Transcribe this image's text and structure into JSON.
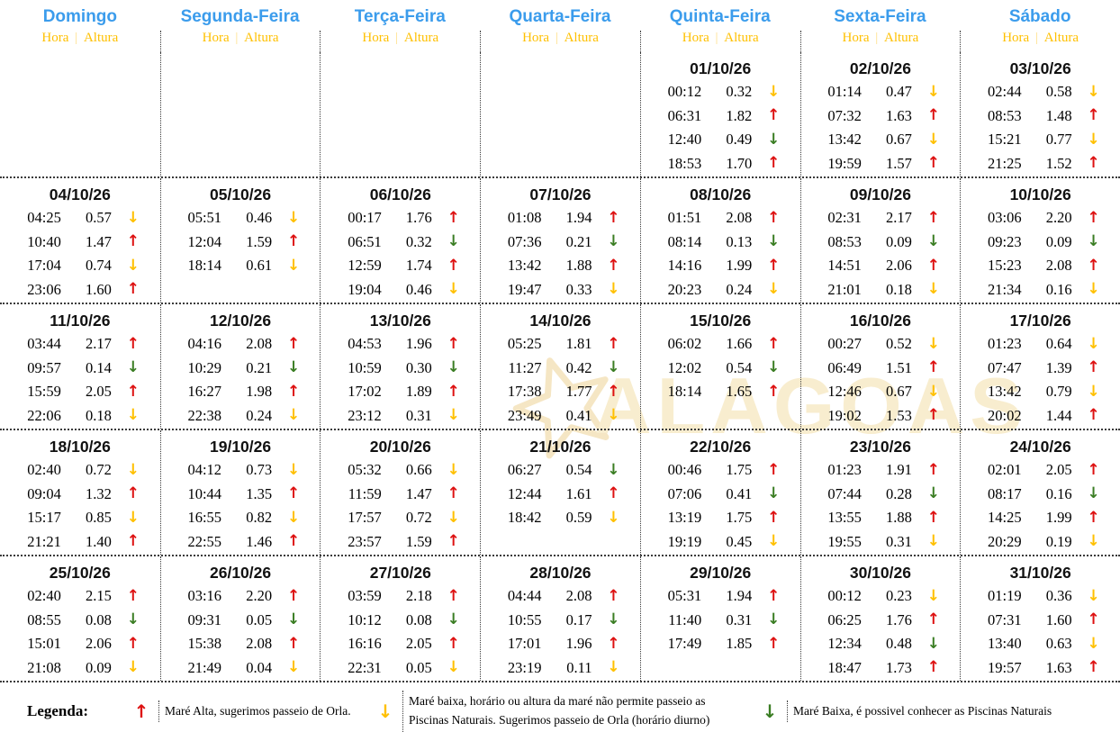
{
  "header": {
    "days": [
      "Domingo",
      "Segunda-Feira",
      "Terça-Feira",
      "Quarta-Feira",
      "Quinta-Feira",
      "Sexta-Feira",
      "Sábado"
    ],
    "hora_label": "Hora",
    "separator": "|",
    "altura_label": "Altura"
  },
  "tide_fields": [
    "time",
    "height",
    "direction",
    "color"
  ],
  "weeks": [
    {
      "days": [
        {
          "date": "",
          "tides": []
        },
        {
          "date": "",
          "tides": []
        },
        {
          "date": "",
          "tides": []
        },
        {
          "date": "",
          "tides": []
        },
        {
          "date": "01/10/26",
          "tides": [
            [
              "00:12",
              "0.32",
              "down",
              "yellow"
            ],
            [
              "06:31",
              "1.82",
              "up",
              "red"
            ],
            [
              "12:40",
              "0.49",
              "down",
              "green"
            ],
            [
              "18:53",
              "1.70",
              "up",
              "red"
            ]
          ]
        },
        {
          "date": "02/10/26",
          "tides": [
            [
              "01:14",
              "0.47",
              "down",
              "yellow"
            ],
            [
              "07:32",
              "1.63",
              "up",
              "red"
            ],
            [
              "13:42",
              "0.67",
              "down",
              "yellow"
            ],
            [
              "19:59",
              "1.57",
              "up",
              "red"
            ]
          ]
        },
        {
          "date": "03/10/26",
          "tides": [
            [
              "02:44",
              "0.58",
              "down",
              "yellow"
            ],
            [
              "08:53",
              "1.48",
              "up",
              "red"
            ],
            [
              "15:21",
              "0.77",
              "down",
              "yellow"
            ],
            [
              "21:25",
              "1.52",
              "up",
              "red"
            ]
          ]
        }
      ]
    },
    {
      "days": [
        {
          "date": "04/10/26",
          "tides": [
            [
              "04:25",
              "0.57",
              "down",
              "yellow"
            ],
            [
              "10:40",
              "1.47",
              "up",
              "red"
            ],
            [
              "17:04",
              "0.74",
              "down",
              "yellow"
            ],
            [
              "23:06",
              "1.60",
              "up",
              "red"
            ]
          ]
        },
        {
          "date": "05/10/26",
          "tides": [
            [
              "05:51",
              "0.46",
              "down",
              "yellow"
            ],
            [
              "12:04",
              "1.59",
              "up",
              "red"
            ],
            [
              "18:14",
              "0.61",
              "down",
              "yellow"
            ]
          ]
        },
        {
          "date": "06/10/26",
          "tides": [
            [
              "00:17",
              "1.76",
              "up",
              "red"
            ],
            [
              "06:51",
              "0.32",
              "down",
              "green"
            ],
            [
              "12:59",
              "1.74",
              "up",
              "red"
            ],
            [
              "19:04",
              "0.46",
              "down",
              "yellow"
            ]
          ]
        },
        {
          "date": "07/10/26",
          "tides": [
            [
              "01:08",
              "1.94",
              "up",
              "red"
            ],
            [
              "07:36",
              "0.21",
              "down",
              "green"
            ],
            [
              "13:42",
              "1.88",
              "up",
              "red"
            ],
            [
              "19:47",
              "0.33",
              "down",
              "yellow"
            ]
          ]
        },
        {
          "date": "08/10/26",
          "tides": [
            [
              "01:51",
              "2.08",
              "up",
              "red"
            ],
            [
              "08:14",
              "0.13",
              "down",
              "green"
            ],
            [
              "14:16",
              "1.99",
              "up",
              "red"
            ],
            [
              "20:23",
              "0.24",
              "down",
              "yellow"
            ]
          ]
        },
        {
          "date": "09/10/26",
          "tides": [
            [
              "02:31",
              "2.17",
              "up",
              "red"
            ],
            [
              "08:53",
              "0.09",
              "down",
              "green"
            ],
            [
              "14:51",
              "2.06",
              "up",
              "red"
            ],
            [
              "21:01",
              "0.18",
              "down",
              "yellow"
            ]
          ]
        },
        {
          "date": "10/10/26",
          "tides": [
            [
              "03:06",
              "2.20",
              "up",
              "red"
            ],
            [
              "09:23",
              "0.09",
              "down",
              "green"
            ],
            [
              "15:23",
              "2.08",
              "up",
              "red"
            ],
            [
              "21:34",
              "0.16",
              "down",
              "yellow"
            ]
          ]
        }
      ]
    },
    {
      "days": [
        {
          "date": "11/10/26",
          "tides": [
            [
              "03:44",
              "2.17",
              "up",
              "red"
            ],
            [
              "09:57",
              "0.14",
              "down",
              "green"
            ],
            [
              "15:59",
              "2.05",
              "up",
              "red"
            ],
            [
              "22:06",
              "0.18",
              "down",
              "yellow"
            ]
          ]
        },
        {
          "date": "12/10/26",
          "tides": [
            [
              "04:16",
              "2.08",
              "up",
              "red"
            ],
            [
              "10:29",
              "0.21",
              "down",
              "green"
            ],
            [
              "16:27",
              "1.98",
              "up",
              "red"
            ],
            [
              "22:38",
              "0.24",
              "down",
              "yellow"
            ]
          ]
        },
        {
          "date": "13/10/26",
          "tides": [
            [
              "04:53",
              "1.96",
              "up",
              "red"
            ],
            [
              "10:59",
              "0.30",
              "down",
              "green"
            ],
            [
              "17:02",
              "1.89",
              "up",
              "red"
            ],
            [
              "23:12",
              "0.31",
              "down",
              "yellow"
            ]
          ]
        },
        {
          "date": "14/10/26",
          "tides": [
            [
              "05:25",
              "1.81",
              "up",
              "red"
            ],
            [
              "11:27",
              "0.42",
              "down",
              "green"
            ],
            [
              "17:38",
              "1.77",
              "up",
              "red"
            ],
            [
              "23:49",
              "0.41",
              "down",
              "yellow"
            ]
          ]
        },
        {
          "date": "15/10/26",
          "tides": [
            [
              "06:02",
              "1.66",
              "up",
              "red"
            ],
            [
              "12:02",
              "0.54",
              "down",
              "green"
            ],
            [
              "18:14",
              "1.65",
              "up",
              "red"
            ]
          ]
        },
        {
          "date": "16/10/26",
          "tides": [
            [
              "00:27",
              "0.52",
              "down",
              "yellow"
            ],
            [
              "06:49",
              "1.51",
              "up",
              "red"
            ],
            [
              "12:46",
              "0.67",
              "down",
              "yellow"
            ],
            [
              "19:02",
              "1.53",
              "up",
              "red"
            ]
          ]
        },
        {
          "date": "17/10/26",
          "tides": [
            [
              "01:23",
              "0.64",
              "down",
              "yellow"
            ],
            [
              "07:47",
              "1.39",
              "up",
              "red"
            ],
            [
              "13:42",
              "0.79",
              "down",
              "yellow"
            ],
            [
              "20:02",
              "1.44",
              "up",
              "red"
            ]
          ]
        }
      ]
    },
    {
      "days": [
        {
          "date": "18/10/26",
          "tides": [
            [
              "02:40",
              "0.72",
              "down",
              "yellow"
            ],
            [
              "09:04",
              "1.32",
              "up",
              "red"
            ],
            [
              "15:17",
              "0.85",
              "down",
              "yellow"
            ],
            [
              "21:21",
              "1.40",
              "up",
              "red"
            ]
          ]
        },
        {
          "date": "19/10/26",
          "tides": [
            [
              "04:12",
              "0.73",
              "down",
              "yellow"
            ],
            [
              "10:44",
              "1.35",
              "up",
              "red"
            ],
            [
              "16:55",
              "0.82",
              "down",
              "yellow"
            ],
            [
              "22:55",
              "1.46",
              "up",
              "red"
            ]
          ]
        },
        {
          "date": "20/10/26",
          "tides": [
            [
              "05:32",
              "0.66",
              "down",
              "yellow"
            ],
            [
              "11:59",
              "1.47",
              "up",
              "red"
            ],
            [
              "17:57",
              "0.72",
              "down",
              "yellow"
            ],
            [
              "23:57",
              "1.59",
              "up",
              "red"
            ]
          ]
        },
        {
          "date": "21/10/26",
          "tides": [
            [
              "06:27",
              "0.54",
              "down",
              "green"
            ],
            [
              "12:44",
              "1.61",
              "up",
              "red"
            ],
            [
              "18:42",
              "0.59",
              "down",
              "yellow"
            ]
          ]
        },
        {
          "date": "22/10/26",
          "tides": [
            [
              "00:46",
              "1.75",
              "up",
              "red"
            ],
            [
              "07:06",
              "0.41",
              "down",
              "green"
            ],
            [
              "13:19",
              "1.75",
              "up",
              "red"
            ],
            [
              "19:19",
              "0.45",
              "down",
              "yellow"
            ]
          ]
        },
        {
          "date": "23/10/26",
          "tides": [
            [
              "01:23",
              "1.91",
              "up",
              "red"
            ],
            [
              "07:44",
              "0.28",
              "down",
              "green"
            ],
            [
              "13:55",
              "1.88",
              "up",
              "red"
            ],
            [
              "19:55",
              "0.31",
              "down",
              "yellow"
            ]
          ]
        },
        {
          "date": "24/10/26",
          "tides": [
            [
              "02:01",
              "2.05",
              "up",
              "red"
            ],
            [
              "08:17",
              "0.16",
              "down",
              "green"
            ],
            [
              "14:25",
              "1.99",
              "up",
              "red"
            ],
            [
              "20:29",
              "0.19",
              "down",
              "yellow"
            ]
          ]
        }
      ]
    },
    {
      "days": [
        {
          "date": "25/10/26",
          "tides": [
            [
              "02:40",
              "2.15",
              "up",
              "red"
            ],
            [
              "08:55",
              "0.08",
              "down",
              "green"
            ],
            [
              "15:01",
              "2.06",
              "up",
              "red"
            ],
            [
              "21:08",
              "0.09",
              "down",
              "yellow"
            ]
          ]
        },
        {
          "date": "26/10/26",
          "tides": [
            [
              "03:16",
              "2.20",
              "up",
              "red"
            ],
            [
              "09:31",
              "0.05",
              "down",
              "green"
            ],
            [
              "15:38",
              "2.08",
              "up",
              "red"
            ],
            [
              "21:49",
              "0.04",
              "down",
              "yellow"
            ]
          ]
        },
        {
          "date": "27/10/26",
          "tides": [
            [
              "03:59",
              "2.18",
              "up",
              "red"
            ],
            [
              "10:12",
              "0.08",
              "down",
              "green"
            ],
            [
              "16:16",
              "2.05",
              "up",
              "red"
            ],
            [
              "22:31",
              "0.05",
              "down",
              "yellow"
            ]
          ]
        },
        {
          "date": "28/10/26",
          "tides": [
            [
              "04:44",
              "2.08",
              "up",
              "red"
            ],
            [
              "10:55",
              "0.17",
              "down",
              "green"
            ],
            [
              "17:01",
              "1.96",
              "up",
              "red"
            ],
            [
              "23:19",
              "0.11",
              "down",
              "yellow"
            ]
          ]
        },
        {
          "date": "29/10/26",
          "tides": [
            [
              "05:31",
              "1.94",
              "up",
              "red"
            ],
            [
              "11:40",
              "0.31",
              "down",
              "green"
            ],
            [
              "17:49",
              "1.85",
              "up",
              "red"
            ]
          ]
        },
        {
          "date": "30/10/26",
          "tides": [
            [
              "00:12",
              "0.23",
              "down",
              "yellow"
            ],
            [
              "06:25",
              "1.76",
              "up",
              "red"
            ],
            [
              "12:34",
              "0.48",
              "down",
              "green"
            ],
            [
              "18:47",
              "1.73",
              "up",
              "red"
            ]
          ]
        },
        {
          "date": "31/10/26",
          "tides": [
            [
              "01:19",
              "0.36",
              "down",
              "yellow"
            ],
            [
              "07:31",
              "1.60",
              "up",
              "red"
            ],
            [
              "13:40",
              "0.63",
              "down",
              "yellow"
            ],
            [
              "19:57",
              "1.63",
              "up",
              "red"
            ]
          ]
        }
      ]
    }
  ],
  "legend": {
    "title": "Legenda:",
    "items": [
      {
        "direction": "up",
        "color": "red",
        "text": "Maré Alta, sugerimos passeio de Orla."
      },
      {
        "direction": "down",
        "color": "yellow",
        "text": "Maré baixa, horário ou altura da maré não permite passeio as Piscinas Naturais. Sugerimos passeio de Orla (horário diurno)"
      },
      {
        "direction": "down",
        "color": "green",
        "text": "Maré Baixa, é possivel conhecer as Piscinas Naturais"
      }
    ]
  },
  "watermark": {
    "text": "ALAGOAS"
  },
  "colors": {
    "header_blue": "#3b9cec",
    "gold": "#ffc000",
    "tide_red": "#dd1111",
    "tide_green": "#3a7d23",
    "watermark_cream": "#f8edcf",
    "grid_dots": "#3a3a3a"
  }
}
